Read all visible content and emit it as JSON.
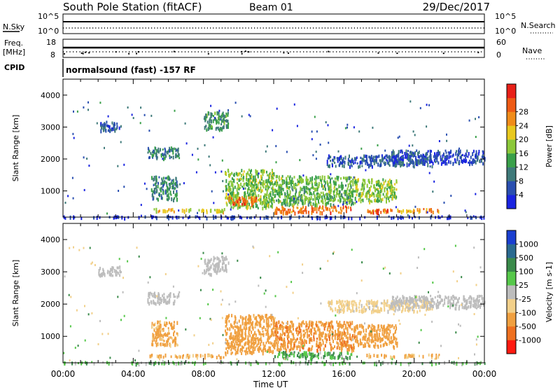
{
  "header": {
    "station": "South Pole Station (fitACF)",
    "beam": "Beam 01",
    "date": "29/Dec/2017"
  },
  "top_panels": {
    "nsky_label": "N.Sky",
    "nsky_ticks": [
      "10^5",
      "10^0"
    ],
    "nsearch_label": "N.Search",
    "nsearch_ticks": [
      "10^5",
      "10^0"
    ],
    "freq_label": "Freq.",
    "freq_unit": "[MHz]",
    "freq_ticks": [
      "18",
      "8"
    ],
    "nave_label": "Nave",
    "nave_ticks": [
      "60",
      "0"
    ],
    "cpid_label": "CPID",
    "cpid_text": "normalsound (fast) -157 RF"
  },
  "chart_data": [
    {
      "type": "heatmap",
      "quantity": "Power",
      "ylabel": "Slant Range [km]",
      "yticks": [
        1000,
        2000,
        3000,
        4000
      ],
      "ylim": [
        180,
        4500
      ],
      "xlim": [
        0,
        24
      ],
      "colorbar": {
        "label": "Power [dB]",
        "ticks": [
          "4",
          "8",
          "12",
          "16",
          "20",
          "24",
          "28"
        ],
        "colors": [
          "#1a24e0",
          "#2a4fb0",
          "#3f7a7a",
          "#3aa04a",
          "#8cc83a",
          "#e8c81e",
          "#f08c1a",
          "#ee5a14",
          "#e82018"
        ]
      },
      "regions": [
        {
          "t0": 2.0,
          "t1": 3.3,
          "r0": 2900,
          "r1": 3200,
          "value": 6
        },
        {
          "t0": 8.0,
          "t1": 9.4,
          "r0": 2950,
          "r1": 3500,
          "value": 11
        },
        {
          "t0": 4.8,
          "t1": 6.6,
          "r0": 2050,
          "r1": 2400,
          "value": 9
        },
        {
          "t0": 5.0,
          "t1": 6.5,
          "r0": 750,
          "r1": 1500,
          "value": 10
        },
        {
          "t0": 9.2,
          "t1": 12.0,
          "r0": 500,
          "r1": 1700,
          "value": 15
        },
        {
          "t0": 12.0,
          "t1": 16.6,
          "r0": 600,
          "r1": 1500,
          "value": 14
        },
        {
          "t0": 16.6,
          "t1": 19.0,
          "r0": 700,
          "r1": 1400,
          "value": 16
        },
        {
          "t0": 9.4,
          "t1": 11.0,
          "r0": 600,
          "r1": 850,
          "value": 26
        },
        {
          "t0": 4.8,
          "t1": 9.2,
          "r0": 380,
          "r1": 470,
          "value": 19
        },
        {
          "t0": 12.0,
          "t1": 16.4,
          "r0": 350,
          "r1": 550,
          "value": 25
        },
        {
          "t0": 17.2,
          "t1": 21.4,
          "r0": 380,
          "r1": 470,
          "value": 22
        },
        {
          "t0": 17.4,
          "t1": 18.8,
          "r0": 350,
          "r1": 450,
          "value": 28
        },
        {
          "t0": 15.0,
          "t1": 21.0,
          "r0": 1800,
          "r1": 2150,
          "value": 6
        },
        {
          "t0": 18.6,
          "t1": 24.0,
          "r0": 1900,
          "r1": 2300,
          "value": 5
        },
        {
          "t0": 0.0,
          "t1": 24.0,
          "r0": 190,
          "r1": 240,
          "value": 3
        }
      ]
    },
    {
      "type": "heatmap",
      "quantity": "Velocity",
      "ylabel": "Slant Range [km]",
      "xlabel": "Time UT",
      "xticks": [
        "00:00",
        "04:00",
        "08:00",
        "12:00",
        "16:00",
        "20:00",
        "00:00"
      ],
      "yticks": [
        1000,
        2000,
        3000,
        4000
      ],
      "ylim": [
        180,
        4500
      ],
      "xlim": [
        0,
        24
      ],
      "colorbar": {
        "label": "Velocity [m s-1]",
        "ticks": [
          "1000",
          "500",
          "100",
          "25",
          "-25",
          "-100",
          "-500",
          "-1000"
        ],
        "colors": [
          "#1a3fd0",
          "#2a6a90",
          "#3a8a4a",
          "#56c84a",
          "#bdbdbd",
          "#f2d08a",
          "#f0a040",
          "#ee7020",
          "#ff1a10"
        ]
      },
      "regions": [
        {
          "t0": 2.0,
          "t1": 3.3,
          "r0": 2900,
          "r1": 3200,
          "value": 0
        },
        {
          "t0": 8.0,
          "t1": 9.4,
          "r0": 2950,
          "r1": 3500,
          "value": 0
        },
        {
          "t0": 4.8,
          "t1": 6.6,
          "r0": 2050,
          "r1": 2400,
          "value": 0
        },
        {
          "t0": 5.0,
          "t1": 6.5,
          "r0": 750,
          "r1": 1500,
          "value": -150
        },
        {
          "t0": 9.2,
          "t1": 12.0,
          "r0": 500,
          "r1": 1700,
          "value": -300
        },
        {
          "t0": 12.0,
          "t1": 16.6,
          "r0": 600,
          "r1": 1500,
          "value": -400
        },
        {
          "t0": 16.6,
          "t1": 19.0,
          "r0": 700,
          "r1": 1400,
          "value": -200
        },
        {
          "t0": 4.8,
          "t1": 9.2,
          "r0": 380,
          "r1": 470,
          "value": -120
        },
        {
          "t0": 12.0,
          "t1": 16.4,
          "r0": 350,
          "r1": 550,
          "value": 60
        },
        {
          "t0": 17.2,
          "t1": 21.4,
          "r0": 380,
          "r1": 470,
          "value": -120
        },
        {
          "t0": 15.0,
          "t1": 21.0,
          "r0": 1800,
          "r1": 2150,
          "value": -50
        },
        {
          "t0": 18.6,
          "t1": 24.0,
          "r0": 1900,
          "r1": 2300,
          "value": 0
        },
        {
          "t0": 0.0,
          "t1": 24.0,
          "r0": 190,
          "r1": 240,
          "value": 40
        }
      ]
    }
  ]
}
